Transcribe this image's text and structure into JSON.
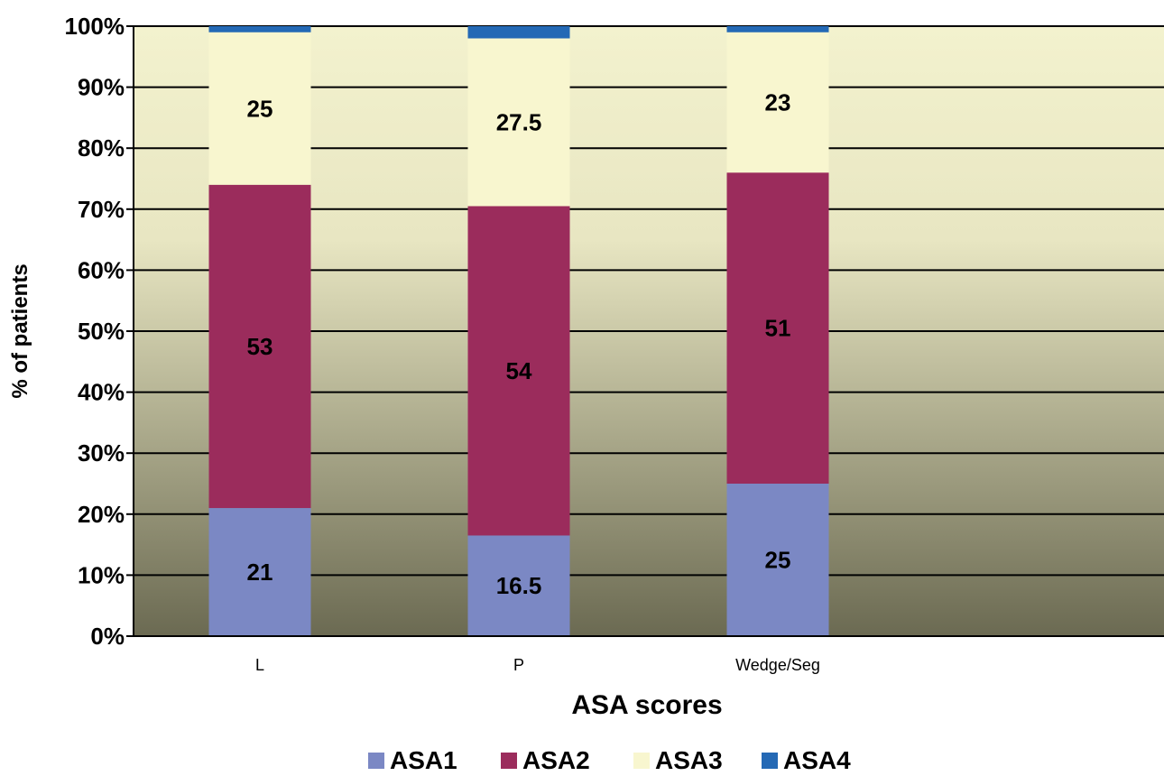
{
  "chart_data": {
    "type": "bar",
    "stacked": true,
    "categories": [
      "L",
      "P",
      "Wedge/Seg"
    ],
    "series": [
      {
        "name": "ASA1",
        "values": [
          21,
          16.5,
          25
        ],
        "labels": [
          "21",
          "16.5",
          "25"
        ],
        "color": "#7B88C4"
      },
      {
        "name": "ASA2",
        "values": [
          53,
          54,
          51
        ],
        "labels": [
          "53",
          "54",
          "51"
        ],
        "color": "#9B2C5C"
      },
      {
        "name": "ASA3",
        "values": [
          25,
          27.5,
          23
        ],
        "labels": [
          "25",
          "27.5",
          "23"
        ],
        "color": "#F8F6CF"
      },
      {
        "name": "ASA4",
        "values": [
          1,
          2,
          1
        ],
        "labels": [
          "",
          "",
          ""
        ],
        "color": "#2469B5"
      }
    ],
    "title": "",
    "xlabel": "ASA scores",
    "ylabel": "% of patients",
    "ylim": [
      0,
      100
    ],
    "yticks": [
      "0%",
      "10%",
      "20%",
      "30%",
      "40%",
      "50%",
      "60%",
      "70%",
      "80%",
      "90%",
      "100%"
    ],
    "grid": true,
    "legend": "bottom",
    "background_gradient": [
      "#F3F2CE",
      "#6B6A52"
    ]
  }
}
